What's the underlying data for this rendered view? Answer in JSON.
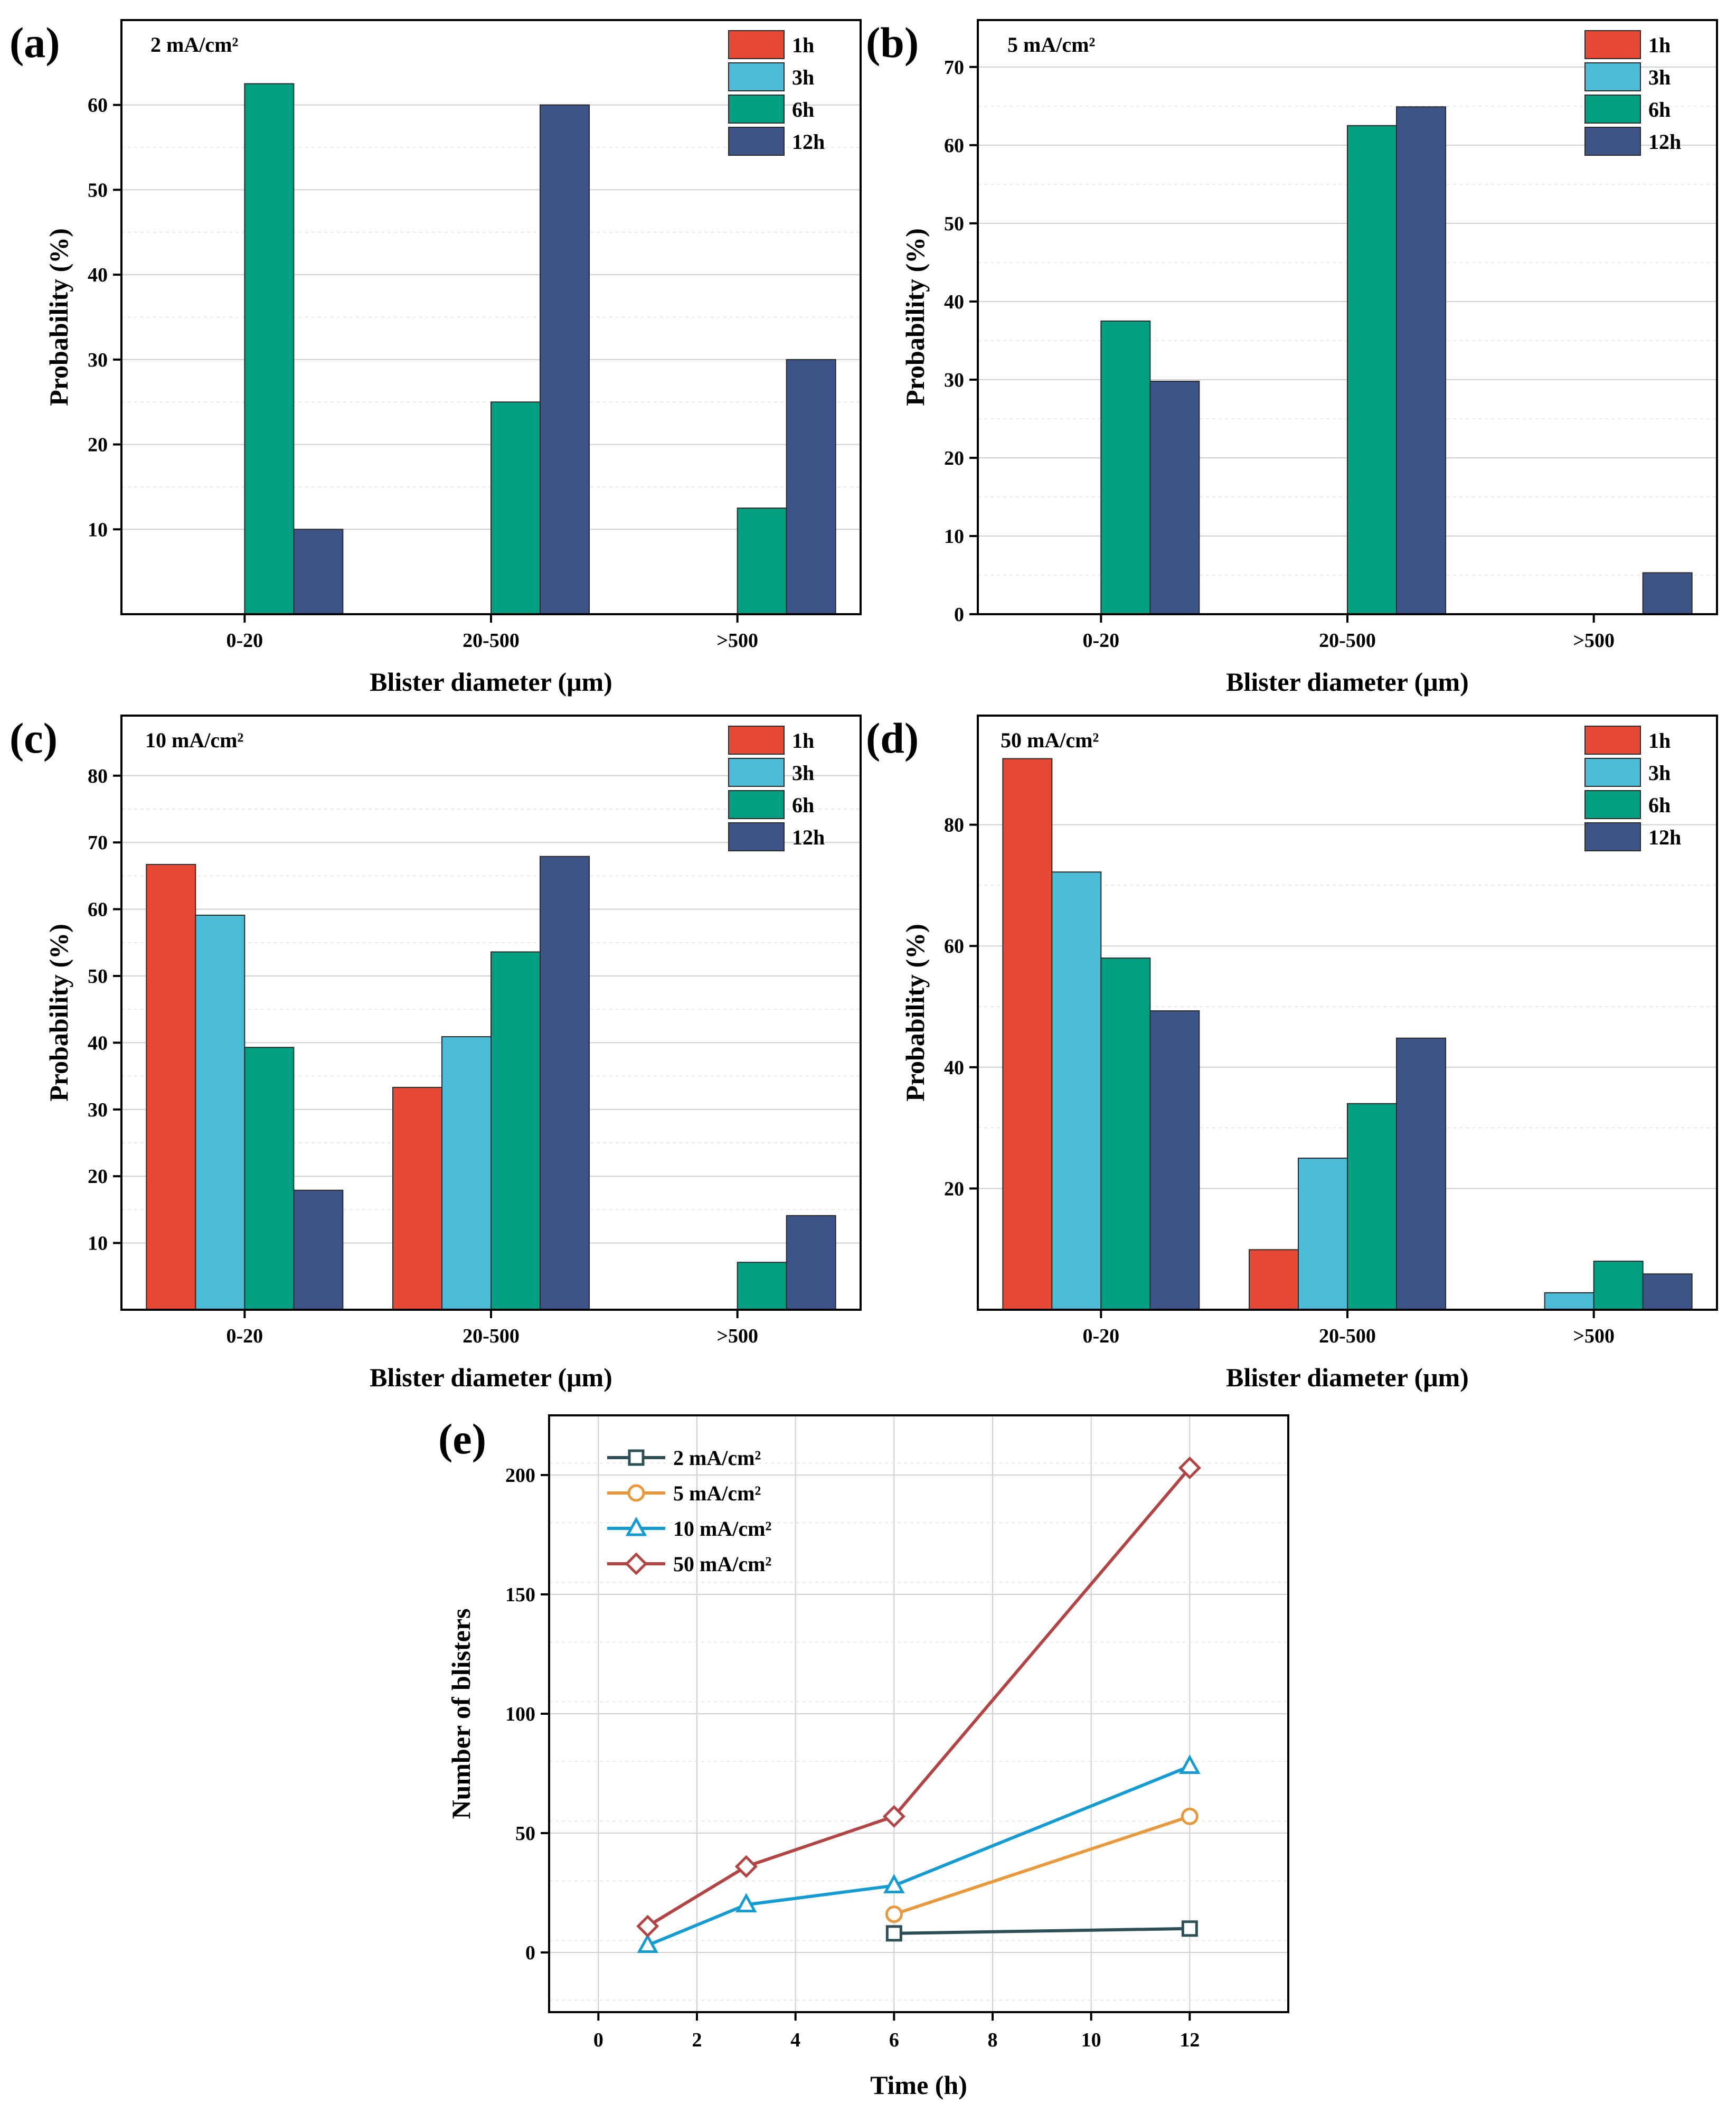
{
  "chart_data": [
    {
      "id": "a",
      "type": "bar",
      "panel_label": "(a)",
      "annotation": "2 mA/cm²",
      "xlabel": "Blister diameter (μm)",
      "ylabel": "Probability (%)",
      "categories": [
        "0-20",
        "20-500",
        ">500"
      ],
      "ylim": [
        0,
        70
      ],
      "yticks": [
        10,
        20,
        30,
        40,
        50,
        60
      ],
      "series": [
        {
          "name": "1h",
          "color": "#e64a35",
          "values": [
            0,
            0,
            0
          ]
        },
        {
          "name": "3h",
          "color": "#4bbbd6",
          "values": [
            0,
            0,
            0
          ]
        },
        {
          "name": "6h",
          "color": "#009f81",
          "values": [
            62.5,
            25,
            12.5
          ]
        },
        {
          "name": "12h",
          "color": "#3c5488",
          "values": [
            10,
            60,
            30
          ]
        }
      ]
    },
    {
      "id": "b",
      "type": "bar",
      "panel_label": "(b)",
      "annotation": "5 mA/cm²",
      "xlabel": "Blister diameter (μm)",
      "ylabel": "Probability (%)",
      "categories": [
        "0-20",
        "20-500",
        ">500"
      ],
      "ylim": [
        0,
        76
      ],
      "yticks": [
        0,
        10,
        20,
        30,
        40,
        50,
        60,
        70
      ],
      "series": [
        {
          "name": "1h",
          "color": "#e64a35",
          "values": [
            0,
            0,
            0
          ]
        },
        {
          "name": "3h",
          "color": "#4bbbd6",
          "values": [
            0,
            0,
            0
          ]
        },
        {
          "name": "6h",
          "color": "#009f81",
          "values": [
            37.5,
            62.5,
            0
          ]
        },
        {
          "name": "12h",
          "color": "#3c5488",
          "values": [
            29.8,
            64.9,
            5.3
          ]
        }
      ]
    },
    {
      "id": "c",
      "type": "bar",
      "panel_label": "(c)",
      "annotation": "10 mA/cm²",
      "xlabel": "Blister diameter (μm)",
      "ylabel": "Probability (%)",
      "categories": [
        "0-20",
        "20-500",
        ">500"
      ],
      "ylim": [
        0,
        89
      ],
      "yticks": [
        10,
        20,
        30,
        40,
        50,
        60,
        70,
        80
      ],
      "series": [
        {
          "name": "1h",
          "color": "#e64a35",
          "values": [
            66.7,
            33.3,
            0
          ]
        },
        {
          "name": "3h",
          "color": "#4bbbd6",
          "values": [
            59.1,
            40.9,
            0
          ]
        },
        {
          "name": "6h",
          "color": "#009f81",
          "values": [
            39.3,
            53.6,
            7.1
          ]
        },
        {
          "name": "12h",
          "color": "#3c5488",
          "values": [
            17.9,
            67.9,
            14.1
          ]
        }
      ]
    },
    {
      "id": "d",
      "type": "bar",
      "panel_label": "(d)",
      "annotation": "50 mA/cm²",
      "xlabel": "Blister diameter (μm)",
      "ylabel": "Probability (%)",
      "categories": [
        "0-20",
        "20-500",
        ">500"
      ],
      "ylim": [
        0,
        98
      ],
      "yticks": [
        20,
        40,
        60,
        80
      ],
      "series": [
        {
          "name": "1h",
          "color": "#e64a35",
          "values": [
            90.9,
            9.9,
            0
          ]
        },
        {
          "name": "3h",
          "color": "#4bbbd6",
          "values": [
            72.2,
            25,
            2.8
          ]
        },
        {
          "name": "6h",
          "color": "#009f81",
          "values": [
            58.0,
            34.0,
            8.0
          ]
        },
        {
          "name": "12h",
          "color": "#3c5488",
          "values": [
            49.3,
            44.8,
            5.9
          ]
        }
      ]
    },
    {
      "id": "e",
      "type": "line",
      "panel_label": "(e)",
      "xlabel": "Time (h)",
      "ylabel": "Number of blisters",
      "xlim": [
        -1,
        14
      ],
      "ylim": [
        -25,
        225
      ],
      "xticks": [
        0,
        2,
        4,
        6,
        8,
        10,
        12
      ],
      "yticks": [
        0,
        50,
        100,
        150,
        200
      ],
      "series": [
        {
          "name": "2 mA/cm²",
          "color": "#2f4f56",
          "marker": "square",
          "x": [
            6,
            12
          ],
          "y": [
            8,
            10
          ]
        },
        {
          "name": "5 mA/cm²",
          "color": "#e8993c",
          "marker": "circle",
          "x": [
            6,
            12
          ],
          "y": [
            16,
            57
          ]
        },
        {
          "name": "10 mA/cm²",
          "color": "#149bd1",
          "marker": "triangle",
          "x": [
            1,
            3,
            6,
            12
          ],
          "y": [
            3,
            20,
            28,
            78
          ]
        },
        {
          "name": "50 mA/cm²",
          "color": "#b34444",
          "marker": "diamond",
          "x": [
            1,
            3,
            6,
            12
          ],
          "y": [
            11,
            36,
            57,
            203
          ]
        }
      ]
    }
  ]
}
